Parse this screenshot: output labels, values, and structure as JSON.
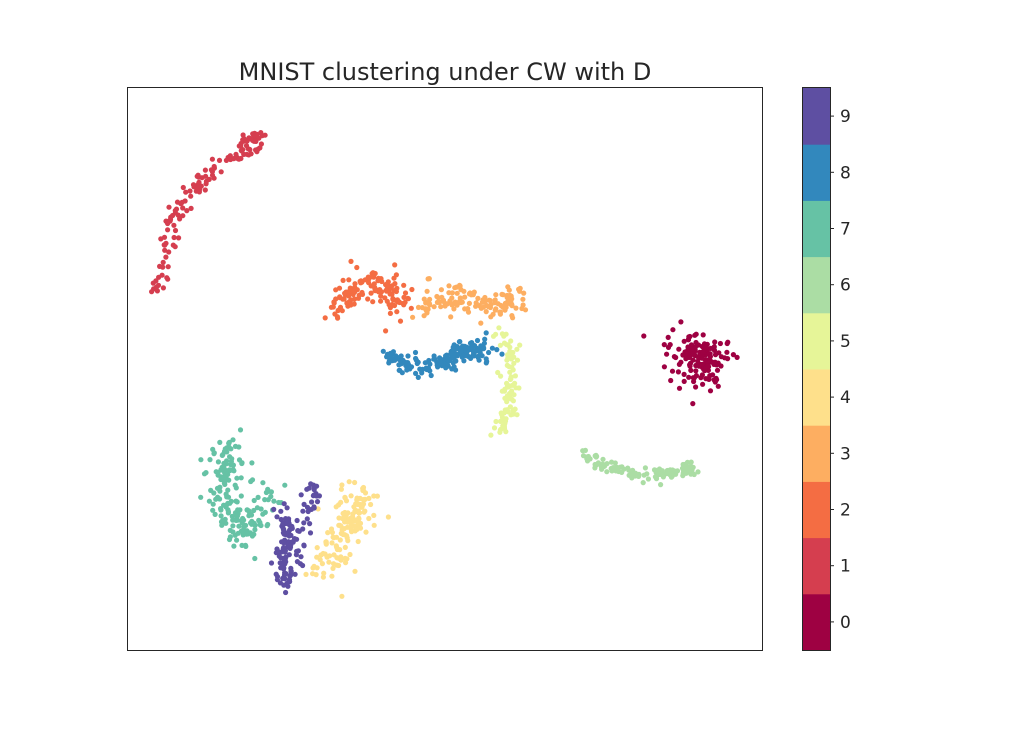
{
  "chart_data": {
    "type": "scatter",
    "title": "MNIST clustering under CW with D",
    "xlabel": "",
    "ylabel": "",
    "axes_ticks_visible": false,
    "grid": false,
    "x_range": [
      0,
      100
    ],
    "y_range": [
      0,
      100
    ],
    "colorbar": {
      "position": "right",
      "labels": [
        "0",
        "1",
        "2",
        "3",
        "4",
        "5",
        "6",
        "7",
        "8",
        "9"
      ],
      "colors": [
        "#9e0142",
        "#d53e4f",
        "#f46d43",
        "#fdae61",
        "#fee08b",
        "#e6f598",
        "#abdda4",
        "#66c2a5",
        "#3288bd",
        "#5e4fa2"
      ]
    },
    "clusters": [
      {
        "label": "0",
        "color": "#9e0142",
        "n": 150,
        "spread": 3.3,
        "path": [
          [
            86.0,
            54.5
          ],
          [
            92.5,
            52.0
          ],
          [
            89.0,
            49.5
          ]
        ]
      },
      {
        "label": "1",
        "color": "#d53e4f",
        "n": 140,
        "spread": 1.3,
        "path": [
          [
            4.5,
            63.5
          ],
          [
            7.0,
            76.0
          ],
          [
            12.0,
            83.5
          ],
          [
            18.5,
            88.5
          ],
          [
            20.5,
            91.5
          ]
        ]
      },
      {
        "label": "2",
        "color": "#f46d43",
        "n": 130,
        "spread": 2.5,
        "path": [
          [
            32.0,
            59.0
          ],
          [
            35.0,
            63.0
          ],
          [
            38.0,
            66.5
          ],
          [
            41.5,
            63.5
          ],
          [
            43.0,
            61.0
          ]
        ]
      },
      {
        "label": "3",
        "color": "#fdae61",
        "n": 130,
        "spread": 2.5,
        "path": [
          [
            47.0,
            61.5
          ],
          [
            52.5,
            63.0
          ],
          [
            57.5,
            61.0
          ],
          [
            61.5,
            62.0
          ]
        ]
      },
      {
        "label": "4",
        "color": "#fee08b",
        "n": 150,
        "spread": 3.0,
        "path": [
          [
            31.5,
            14.5
          ],
          [
            33.0,
            20.0
          ],
          [
            35.5,
            24.5
          ],
          [
            37.0,
            27.5
          ]
        ]
      },
      {
        "label": "5",
        "color": "#e6f598",
        "n": 90,
        "spread": 1.2,
        "path": [
          [
            58.5,
            57.0
          ],
          [
            61.0,
            52.5
          ],
          [
            60.0,
            47.5
          ],
          [
            60.5,
            43.5
          ],
          [
            58.5,
            38.0
          ]
        ]
      },
      {
        "label": "6",
        "color": "#abdda4",
        "n": 110,
        "spread": 1.2,
        "path": [
          [
            71.5,
            35.0
          ],
          [
            76.5,
            32.5
          ],
          [
            82.5,
            31.0
          ],
          [
            87.5,
            32.0
          ],
          [
            89.0,
            32.5
          ]
        ]
      },
      {
        "label": "7",
        "color": "#66c2a5",
        "n": 190,
        "spread": 2.6,
        "path": [
          [
            15.0,
            36.5
          ],
          [
            16.5,
            33.0
          ],
          [
            14.5,
            28.5
          ],
          [
            16.5,
            24.0
          ],
          [
            19.0,
            20.5
          ],
          [
            23.0,
            28.0
          ]
        ]
      },
      {
        "label": "8",
        "color": "#3288bd",
        "n": 160,
        "spread": 1.6,
        "path": [
          [
            40.5,
            52.0
          ],
          [
            46.0,
            50.5
          ],
          [
            50.5,
            51.5
          ],
          [
            53.5,
            54.0
          ],
          [
            57.5,
            52.5
          ]
        ]
      },
      {
        "label": "9",
        "color": "#5e4fa2",
        "n": 140,
        "spread": 1.3,
        "path": [
          [
            24.5,
            25.5
          ],
          [
            25.5,
            21.0
          ],
          [
            24.5,
            16.0
          ],
          [
            25.0,
            11.5
          ],
          [
            28.5,
            25.0
          ],
          [
            29.5,
            29.5
          ]
        ]
      }
    ]
  }
}
